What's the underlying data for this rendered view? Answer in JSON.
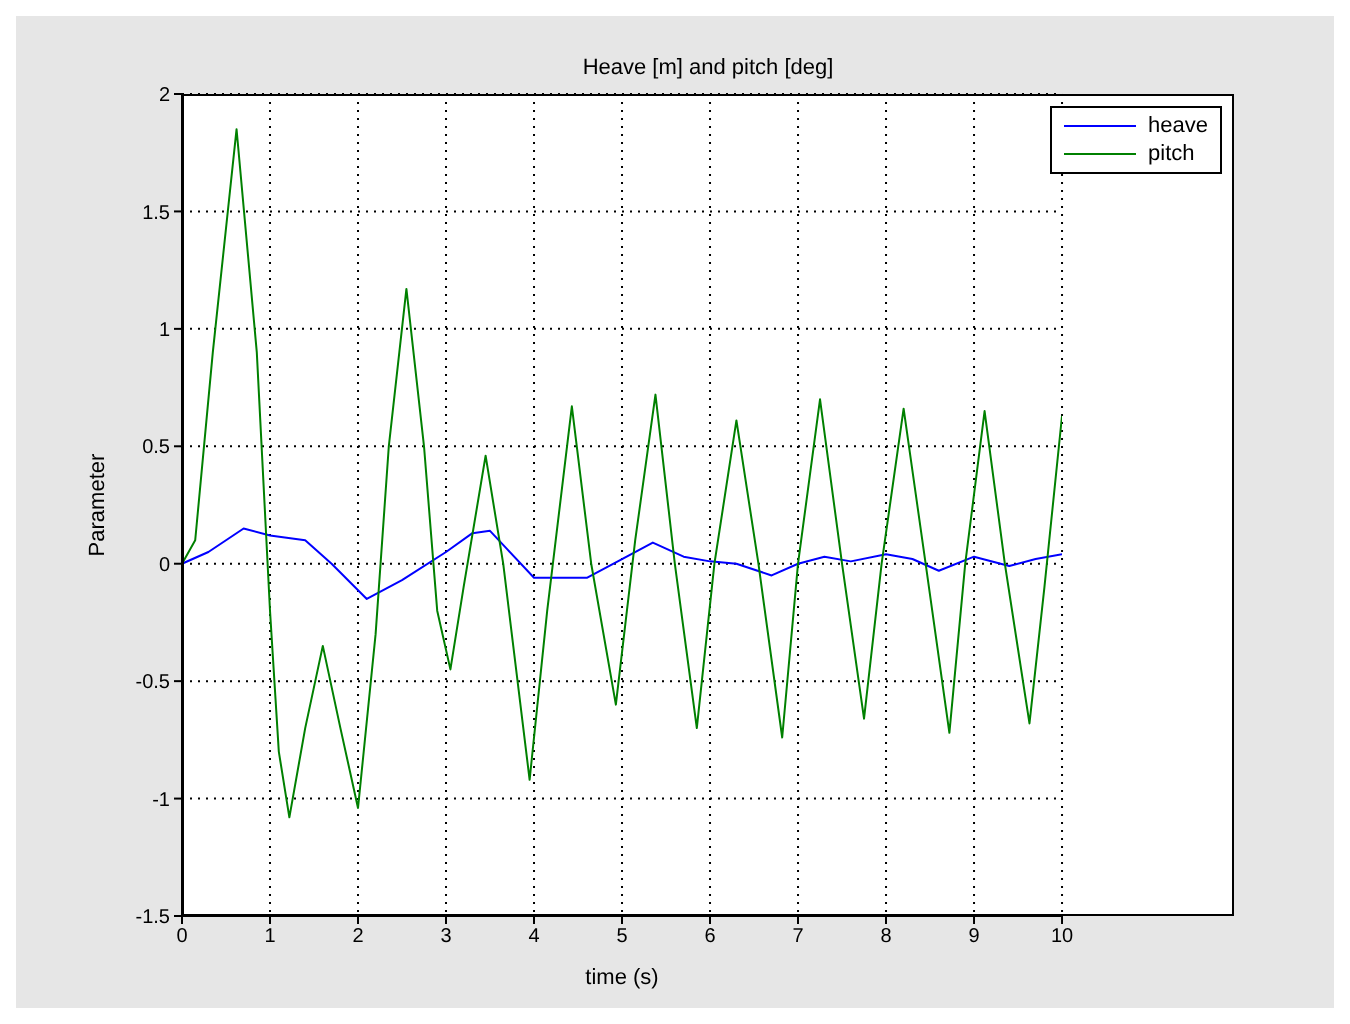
{
  "chart_data": {
    "type": "line",
    "title": "Heave [m] and pitch [deg]",
    "xlabel": "time (s)",
    "ylabel": "Parameter",
    "xlim": [
      0,
      10
    ],
    "xticks": [
      0,
      1,
      2,
      3,
      4,
      5,
      6,
      7,
      8,
      9,
      10
    ],
    "ylim": [
      -1.5,
      2
    ],
    "yticks": [
      -1.5,
      -1,
      -0.5,
      0,
      0.5,
      1,
      1.5,
      2
    ],
    "grid": true,
    "legend": "top right",
    "series": [
      {
        "name": "heave",
        "color": "#0000ff",
        "x": [
          0,
          0.3,
          0.7,
          1.0,
          1.4,
          1.7,
          2.1,
          2.5,
          3.0,
          3.3,
          3.5,
          3.7,
          4.0,
          4.6,
          5.0,
          5.35,
          5.7,
          6.0,
          6.3,
          6.7,
          7.0,
          7.3,
          7.6,
          8.0,
          8.3,
          8.6,
          9.0,
          9.4,
          9.7,
          10
        ],
        "values": [
          0,
          0.05,
          0.15,
          0.12,
          0.1,
          0.0,
          -0.15,
          -0.07,
          0.05,
          0.13,
          0.14,
          0.06,
          -0.06,
          -0.06,
          0.02,
          0.09,
          0.03,
          0.01,
          0.0,
          -0.05,
          0.0,
          0.03,
          0.01,
          0.04,
          0.02,
          -0.03,
          0.03,
          -0.01,
          0.02,
          0.04
        ]
      },
      {
        "name": "pitch",
        "color": "#008000",
        "x": [
          0,
          0.15,
          0.35,
          0.62,
          0.85,
          1.0,
          1.1,
          1.22,
          1.4,
          1.6,
          1.8,
          2.0,
          2.2,
          2.35,
          2.55,
          2.75,
          2.9,
          3.05,
          3.2,
          3.45,
          3.65,
          3.95,
          4.15,
          4.43,
          4.65,
          4.93,
          5.15,
          5.38,
          5.6,
          5.85,
          6.05,
          6.3,
          6.55,
          6.82,
          7.0,
          7.25,
          7.5,
          7.75,
          7.95,
          8.2,
          8.45,
          8.72,
          8.9,
          9.12,
          9.35,
          9.63,
          9.8,
          10
        ],
        "values": [
          0,
          0.1,
          0.9,
          1.85,
          0.9,
          -0.2,
          -0.8,
          -1.08,
          -0.7,
          -0.35,
          -0.7,
          -1.04,
          -0.3,
          0.5,
          1.17,
          0.5,
          -0.2,
          -0.45,
          -0.1,
          0.46,
          0,
          -0.92,
          -0.2,
          0.67,
          0,
          -0.6,
          0.1,
          0.72,
          0,
          -0.7,
          0,
          0.61,
          0,
          -0.74,
          0,
          0.7,
          0,
          -0.66,
          0,
          0.66,
          0,
          -0.72,
          0,
          0.65,
          0,
          -0.68,
          -0.1,
          0.63
        ]
      }
    ]
  }
}
